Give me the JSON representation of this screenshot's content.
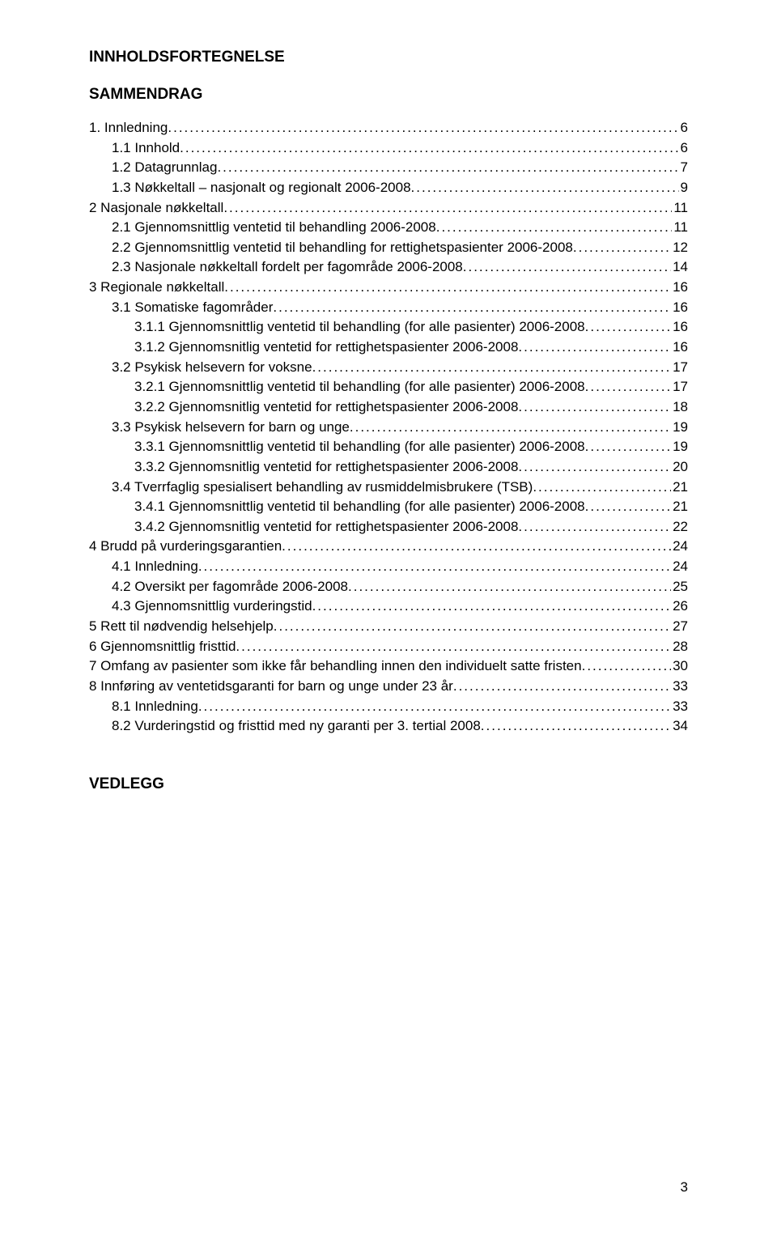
{
  "headings": {
    "main": "INNHOLDSFORTEGNELSE",
    "summary": "SAMMENDRAG",
    "appendix": "VEDLEGG"
  },
  "pageNumber": "3",
  "toc": [
    {
      "indent": 0,
      "label": "1.  Innledning",
      "page": "6"
    },
    {
      "indent": 1,
      "label": "1.1  Innhold",
      "page": "6"
    },
    {
      "indent": 1,
      "label": "1.2  Datagrunnlag",
      "page": "7"
    },
    {
      "indent": 1,
      "label": "1.3  Nøkkeltall – nasjonalt og regionalt 2006-2008",
      "page": "9"
    },
    {
      "indent": 0,
      "label": "2  Nasjonale nøkkeltall",
      "page": "11"
    },
    {
      "indent": 1,
      "label": "2.1  Gjennomsnittlig ventetid til behandling 2006-2008",
      "page": "11"
    },
    {
      "indent": 1,
      "label": "2.2  Gjennomsnittlig ventetid til behandling for rettighetspasienter 2006-2008",
      "page": "12"
    },
    {
      "indent": 1,
      "label": "2.3  Nasjonale nøkkeltall fordelt per fagområde 2006-2008",
      "page": "14"
    },
    {
      "indent": 0,
      "label": "3  Regionale nøkkeltall",
      "page": "16"
    },
    {
      "indent": 1,
      "label": "3.1  Somatiske fagområder",
      "page": "16"
    },
    {
      "indent": 2,
      "label": "3.1.1  Gjennomsnittlig ventetid til behandling (for alle pasienter) 2006-2008",
      "page": "16"
    },
    {
      "indent": 2,
      "label": "3.1.2  Gjennomsnitlig ventetid for rettighetspasienter 2006-2008",
      "page": "16"
    },
    {
      "indent": 1,
      "label": "3.2  Psykisk helsevern for voksne",
      "page": "17"
    },
    {
      "indent": 2,
      "label": "3.2.1  Gjennomsnittlig ventetid til behandling (for alle pasienter) 2006-2008",
      "page": "17"
    },
    {
      "indent": 2,
      "label": "3.2.2  Gjennomsnitlig ventetid for rettighetspasienter 2006-2008",
      "page": "18"
    },
    {
      "indent": 1,
      "label": "3.3  Psykisk helsevern for barn og unge",
      "page": "19"
    },
    {
      "indent": 2,
      "label": "3.3.1  Gjennomsnittlig ventetid til behandling (for alle pasienter) 2006-2008",
      "page": "19"
    },
    {
      "indent": 2,
      "label": "3.3.2  Gjennomsnitlig ventetid for rettighetspasienter 2006-2008",
      "page": "20"
    },
    {
      "indent": 1,
      "label": "3.4  Tverrfaglig spesialisert behandling av rusmiddelmisbrukere (TSB)",
      "page": "21"
    },
    {
      "indent": 2,
      "label": "3.4.1  Gjennomsnittlig ventetid til behandling (for alle pasienter) 2006-2008",
      "page": "21"
    },
    {
      "indent": 2,
      "label": "3.4.2  Gjennomsnitlig ventetid for rettighetspasienter 2006-2008",
      "page": "22"
    },
    {
      "indent": 0,
      "label": "4  Brudd på vurderingsgarantien",
      "page": "24"
    },
    {
      "indent": 1,
      "label": "4.1  Innledning",
      "page": "24"
    },
    {
      "indent": 1,
      "label": "4.2  Oversikt per fagområde 2006-2008",
      "page": "25"
    },
    {
      "indent": 1,
      "label": "4.3  Gjennomsnittlig vurderingstid",
      "page": "26"
    },
    {
      "indent": 0,
      "label": "5  Rett til nødvendig helsehjelp",
      "page": "27"
    },
    {
      "indent": 0,
      "label": "6  Gjennomsnittlig fristtid",
      "page": "28"
    },
    {
      "indent": 0,
      "label": "7  Omfang av pasienter som ikke får behandling innen den individuelt satte fristen",
      "page": "30"
    },
    {
      "indent": 0,
      "label": "8  Innføring av ventetidsgaranti for barn og unge under 23 år",
      "page": "33"
    },
    {
      "indent": 1,
      "label": "8.1  Innledning",
      "page": "33"
    },
    {
      "indent": 1,
      "label": "8.2  Vurderingstid og fristtid med ny garanti per 3. tertial 2008",
      "page": "34"
    }
  ]
}
